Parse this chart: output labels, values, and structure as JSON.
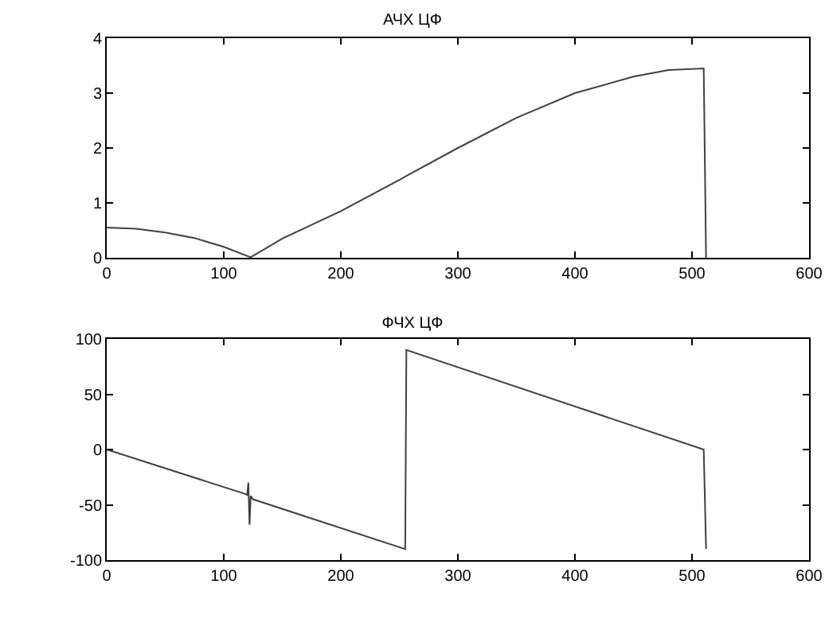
{
  "chart_data": [
    {
      "type": "line",
      "title": "АЧХ ЦФ",
      "x": [
        0,
        25,
        50,
        75,
        100,
        123,
        150,
        200,
        250,
        300,
        350,
        400,
        450,
        480,
        510,
        512
      ],
      "series": [
        {
          "color": "#404040",
          "values": [
            0.55,
            0.53,
            0.46,
            0.36,
            0.2,
            0.01,
            0.35,
            0.85,
            1.42,
            2.0,
            2.55,
            3.0,
            3.3,
            3.42,
            3.45,
            0
          ]
        }
      ],
      "xlim": [
        0,
        600
      ],
      "xticks": [
        0,
        100,
        200,
        300,
        400,
        500,
        600
      ],
      "ylim": [
        0,
        4
      ],
      "yticks": [
        0,
        1,
        2,
        3,
        4
      ],
      "grid": false
    },
    {
      "type": "line",
      "title": "ФЧХ ЦФ",
      "x": [
        0,
        118,
        120,
        121,
        122,
        123,
        125,
        255,
        256,
        510,
        512
      ],
      "series": [
        {
          "color": "#404040",
          "values": [
            0,
            -40,
            -41,
            -30,
            -68,
            -42,
            -45,
            -90,
            90,
            0,
            -90
          ]
        }
      ],
      "xlim": [
        0,
        600
      ],
      "xticks": [
        0,
        100,
        200,
        300,
        400,
        500,
        600
      ],
      "ylim": [
        -100,
        100
      ],
      "yticks": [
        -100,
        -50,
        0,
        50,
        100
      ],
      "grid": false
    }
  ]
}
